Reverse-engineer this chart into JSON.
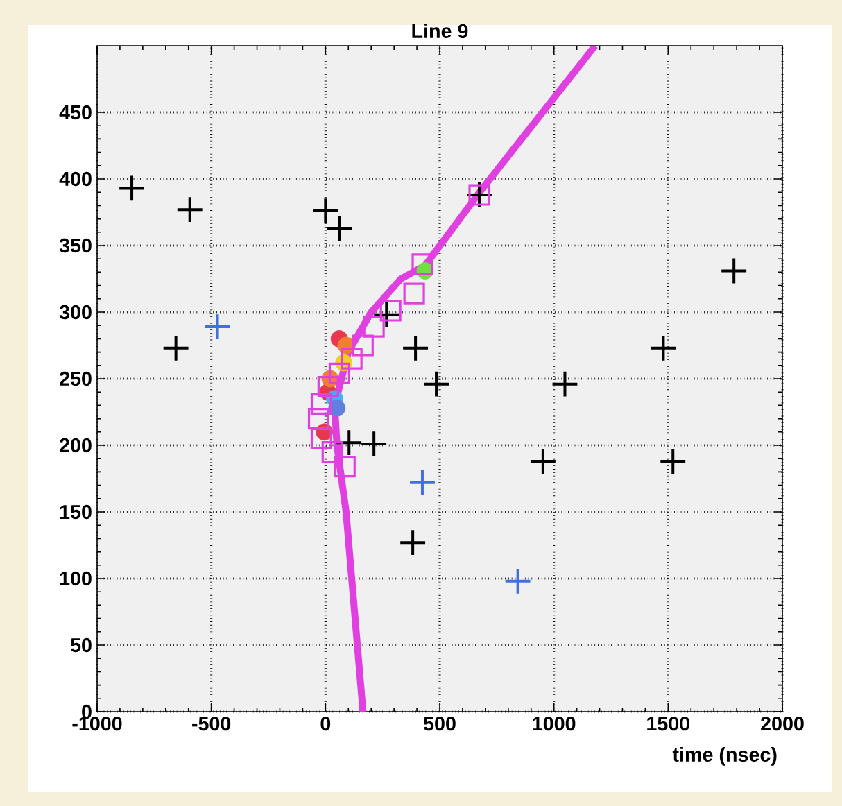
{
  "chart_data": {
    "type": "scatter",
    "title": "Line 9",
    "xlabel": "time (nsec)",
    "xlim": [
      -1000,
      2000
    ],
    "xticks": [
      -1000,
      -500,
      0,
      500,
      1000,
      1500,
      2000
    ],
    "ylim": [
      0,
      500
    ],
    "yticks": [
      0,
      50,
      100,
      150,
      200,
      250,
      300,
      350,
      400,
      450
    ],
    "grid": true,
    "series": [
      {
        "type": "line",
        "color": "#e040e0",
        "marker": "none",
        "x": [
          164,
          90,
          50,
          40,
          100,
          200,
          330,
          436,
          679,
          1180
        ],
        "values": [
          0,
          150,
          200,
          230,
          270,
          300,
          325,
          335,
          391,
          500
        ]
      },
      {
        "color": "#000000",
        "marker": "cross",
        "x": [
          -848,
          -594,
          0,
          61,
          -655,
          394,
          485,
          1048,
          1479,
          1788,
          673,
          212,
          952,
          1521,
          382,
          103,
          267
        ],
        "values": [
          393,
          377,
          376,
          363,
          273,
          273,
          246,
          246,
          273,
          331,
          388,
          201,
          188,
          188,
          127,
          202,
          298
        ]
      },
      {
        "color": "#4070e0",
        "marker": "cross",
        "x": [
          -473,
          424,
          842
        ],
        "values": [
          289,
          172,
          98
        ]
      },
      {
        "color": "#e8384f",
        "marker": "circle",
        "x": [
          -5,
          10,
          60
        ],
        "values": [
          210,
          240,
          280
        ]
      },
      {
        "color": "#f08030",
        "marker": "circle",
        "x": [
          20,
          90
        ],
        "values": [
          250,
          275
        ]
      },
      {
        "color": "#f0d020",
        "marker": "circle",
        "x": [
          80
        ],
        "values": [
          262
        ]
      },
      {
        "color": "#40b0f0",
        "marker": "circle",
        "x": [
          40
        ],
        "values": [
          235
        ]
      },
      {
        "color": "#6080e0",
        "marker": "circle",
        "x": [
          50
        ],
        "values": [
          228
        ]
      },
      {
        "color": "#70e040",
        "marker": "circle",
        "x": [
          436
        ],
        "values": [
          331
        ]
      },
      {
        "color": "#e040e0",
        "marker": "square",
        "x": [
          424,
          388,
          285,
          212,
          164,
          115,
          61,
          12,
          -18,
          -30,
          -18,
          30,
          85,
          673
        ],
        "values": [
          336,
          314,
          301,
          289,
          275,
          265,
          254,
          244,
          231,
          220,
          205,
          195,
          184,
          388
        ]
      }
    ]
  }
}
